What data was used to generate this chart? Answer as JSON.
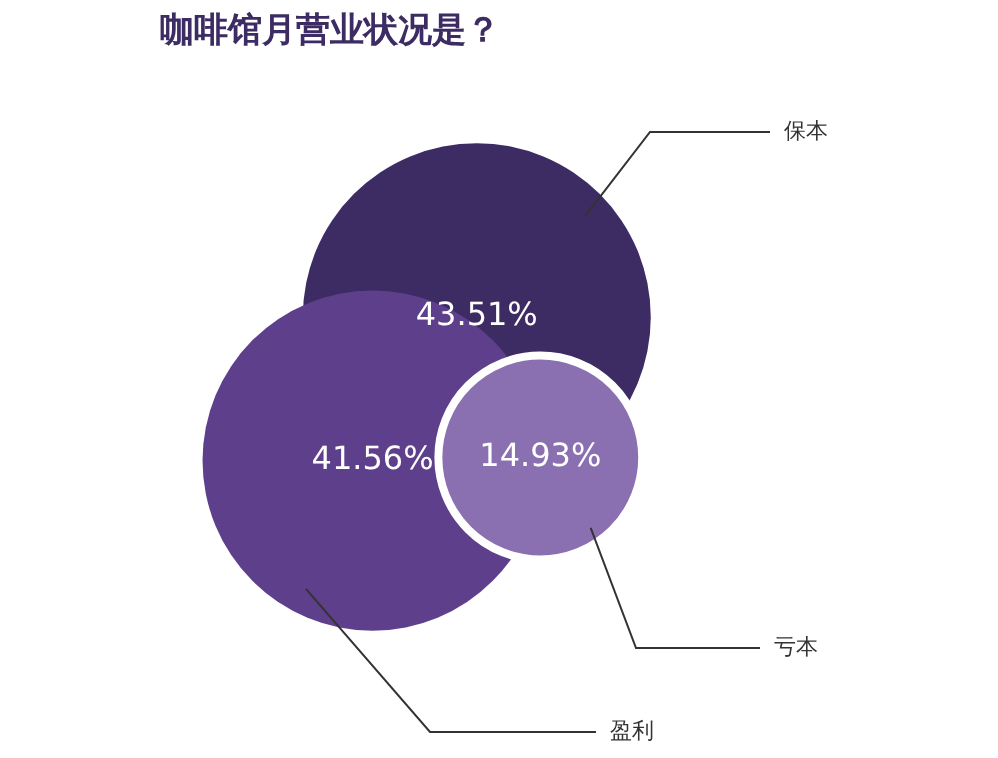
{
  "chart_data": {
    "type": "other",
    "title": "咖啡馆月营业状况是？",
    "categories": [
      "保本",
      "盈利",
      "亏本"
    ],
    "values": [
      43.51,
      41.56,
      14.93
    ],
    "colors": [
      "#3d2b63",
      "#5e3f8c",
      "#8a70b0"
    ],
    "value_labels": [
      "43.51%",
      "41.56%",
      "14.93%"
    ]
  }
}
